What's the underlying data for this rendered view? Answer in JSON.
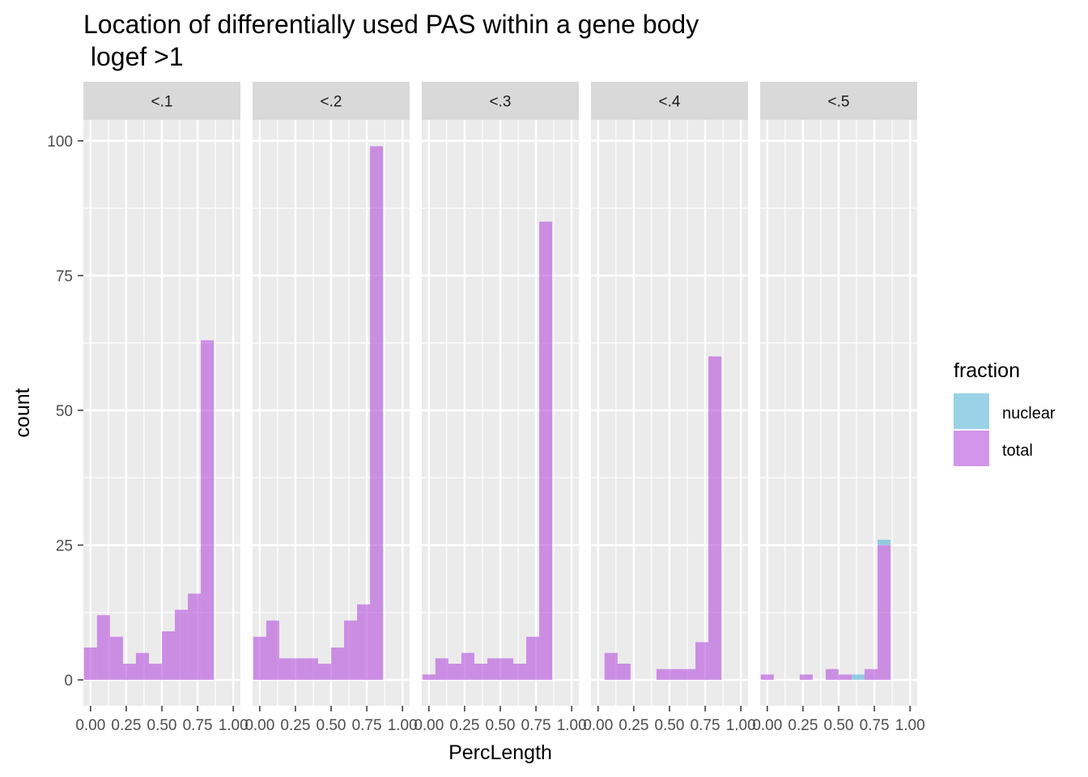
{
  "chart_data": {
    "type": "bar",
    "subtype": "faceted-histogram",
    "title_lines": [
      "Location of differentially used PAS within a gene body",
      " logef >1"
    ],
    "xlabel": "PercLength",
    "ylabel": "count",
    "xlim": [
      -0.05,
      1.05
    ],
    "ylim": [
      0,
      105
    ],
    "x_ticks": [
      0.0,
      0.25,
      0.5,
      0.75,
      1.0
    ],
    "x_tick_labels": [
      "0.00",
      "0.25",
      "0.50",
      "0.75",
      "1.00"
    ],
    "y_ticks": [
      0,
      25,
      50,
      75,
      100
    ],
    "y_tick_labels": [
      "0",
      "25",
      "50",
      "75",
      "100"
    ],
    "bin_width": 0.0909,
    "bin_centers": [
      0.0,
      0.0909,
      0.1818,
      0.2727,
      0.3636,
      0.4545,
      0.5455,
      0.6364,
      0.7273,
      0.8182,
      0.9091,
      1.0
    ],
    "legend": {
      "title": "fraction",
      "position": "right",
      "items": [
        {
          "name": "nuclear",
          "color": "#56b4d8"
        },
        {
          "name": "total",
          "color": "#b44fdc"
        }
      ]
    },
    "panels": [
      {
        "label": "<.1",
        "series": [
          {
            "name": "total",
            "values": [
              6,
              12,
              8,
              3,
              5,
              3,
              9,
              13,
              16,
              63,
              0,
              0
            ]
          },
          {
            "name": "nuclear",
            "values": [
              0,
              0,
              0,
              0,
              0,
              0,
              0,
              0,
              0,
              0,
              0,
              0
            ]
          }
        ]
      },
      {
        "label": "<.2",
        "series": [
          {
            "name": "total",
            "values": [
              8,
              11,
              4,
              4,
              4,
              3,
              6,
              11,
              14,
              99,
              0,
              0
            ]
          },
          {
            "name": "nuclear",
            "values": [
              0,
              0,
              0,
              0,
              0,
              0,
              0,
              0,
              0,
              0,
              0,
              0
            ]
          }
        ]
      },
      {
        "label": "<.3",
        "series": [
          {
            "name": "total",
            "values": [
              1,
              4,
              3,
              5,
              3,
              4,
              4,
              3,
              8,
              85,
              0,
              0
            ]
          },
          {
            "name": "nuclear",
            "values": [
              0,
              0,
              0,
              0,
              0,
              0,
              0,
              0,
              0,
              0,
              0,
              0
            ]
          }
        ]
      },
      {
        "label": "<.4",
        "series": [
          {
            "name": "total",
            "values": [
              0,
              5,
              3,
              0,
              0,
              2,
              2,
              2,
              7,
              60,
              0,
              0
            ]
          },
          {
            "name": "nuclear",
            "values": [
              0,
              0,
              0,
              0,
              0,
              0,
              0,
              0,
              0,
              0,
              0,
              0
            ]
          }
        ]
      },
      {
        "label": "<.5",
        "series": [
          {
            "name": "total",
            "values": [
              1,
              0,
              0,
              1,
              0,
              2,
              1,
              0,
              2,
              25,
              0,
              0
            ]
          },
          {
            "name": "nuclear",
            "values": [
              0,
              0,
              0,
              0,
              0,
              0,
              0,
              1,
              0,
              1,
              0,
              0
            ]
          }
        ]
      }
    ]
  }
}
